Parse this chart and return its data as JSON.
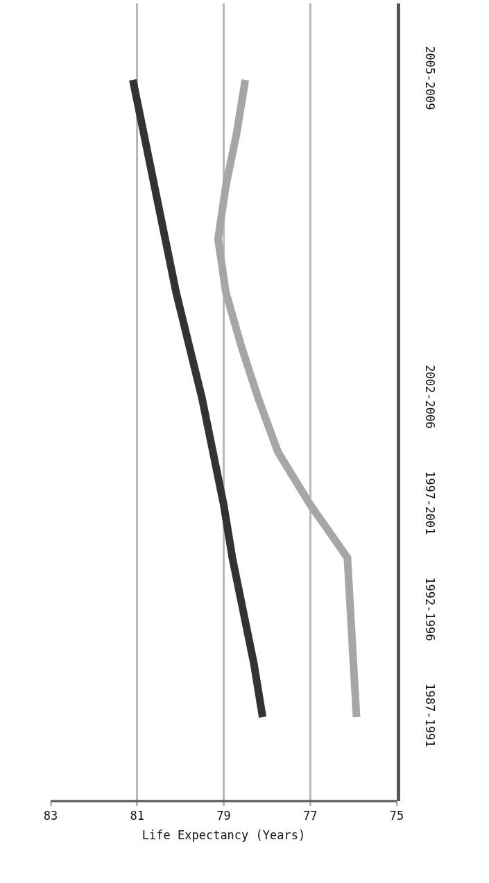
{
  "chart_data": {
    "type": "line",
    "orientation": "horizontal",
    "xlabel": "Life Expectancy (Years)",
    "categories": [
      "2005-2009",
      null,
      null,
      null,
      null,
      null,
      "2002-2006",
      null,
      "1997-2001",
      null,
      "1992-1996",
      null,
      "1987-1991"
    ],
    "series": [
      {
        "color": "#333333",
        "values": [
          81.1,
          80.85,
          80.6,
          80.35,
          80.1,
          79.8,
          79.5,
          79.25,
          79.0,
          78.8,
          78.55,
          78.3,
          78.1
        ]
      },
      {
        "color": "#a6a6a6",
        "values": [
          78.5,
          78.7,
          78.95,
          79.13,
          78.95,
          78.6,
          78.2,
          77.75,
          77.0,
          76.14,
          76.07,
          76.0,
          75.93
        ]
      }
    ],
    "xlim": [
      83,
      75
    ],
    "xticks": [
      83,
      81,
      79,
      77,
      75
    ],
    "grid": "x",
    "marker": "none",
    "line_style": "solid"
  }
}
